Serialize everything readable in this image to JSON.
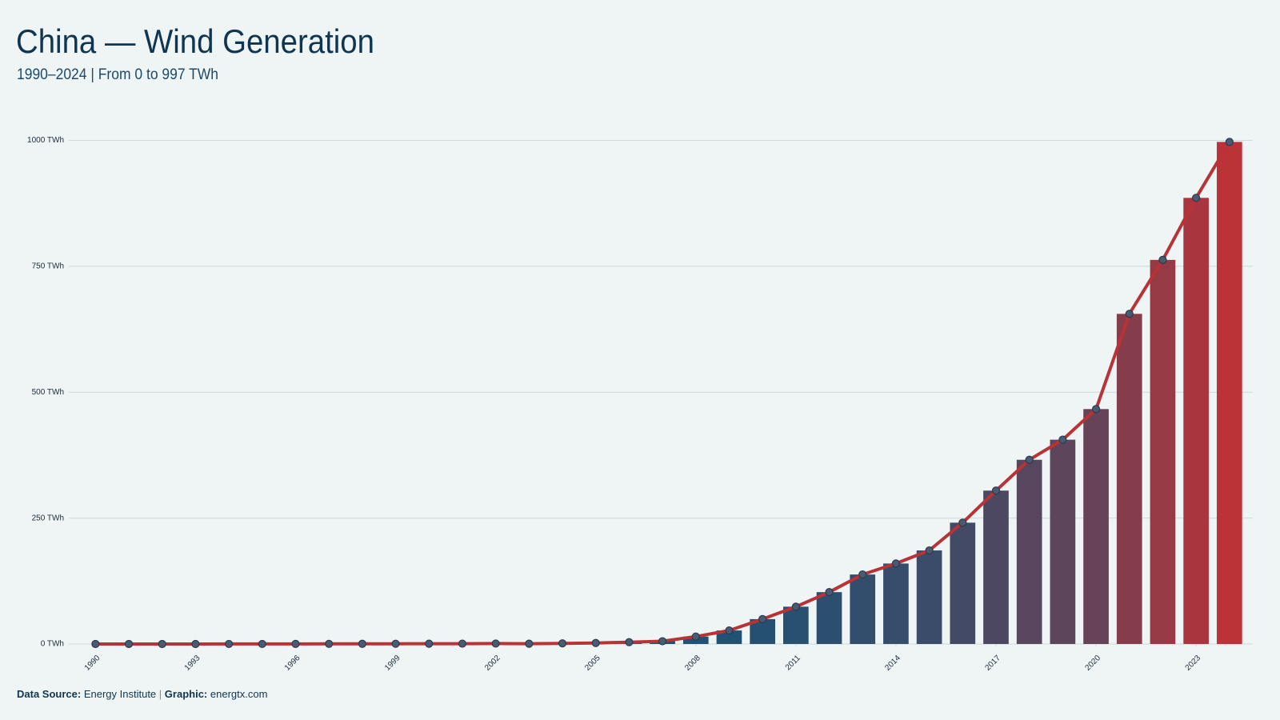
{
  "chart_data": {
    "type": "bar",
    "title": "China — Wind Generation",
    "subtitle": "1990–2024 | From 0 to 997 TWh",
    "source": {
      "source_label": "Data Source:",
      "source_text": "Energy Institute",
      "separator": "|",
      "graphic_label": "Graphic:",
      "graphic_text": "energtx.com"
    },
    "x": [
      1990,
      1991,
      1992,
      1993,
      1994,
      1995,
      1996,
      1997,
      1998,
      1999,
      2000,
      2001,
      2002,
      2003,
      2004,
      2005,
      2006,
      2007,
      2008,
      2009,
      2010,
      2011,
      2012,
      2013,
      2014,
      2015,
      2016,
      2017,
      2018,
      2019,
      2020,
      2021,
      2022,
      2023,
      2024
    ],
    "values": [
      0,
      0,
      0,
      0,
      0.1,
      0.1,
      0.2,
      0.3,
      0.4,
      0.5,
      0.6,
      0.7,
      0.9,
      0.6,
      1.3,
      2.0,
      3.7,
      5.5,
      14.8,
      26.9,
      49.4,
      74.1,
      103,
      138,
      159.8,
      185.8,
      240.9,
      304.6,
      365.8,
      405.7,
      466.5,
      655.6,
      762.7,
      885.9,
      997
    ],
    "colormap": [
      "#1d5275",
      "#bb3237"
    ],
    "line_color": "#b83236",
    "marker_color": "#4a5a70",
    "xlim": [
      1989.2,
      2024.7
    ],
    "xticks": [
      1990,
      1993,
      1996,
      1999,
      2002,
      2005,
      2008,
      2011,
      2014,
      2017,
      2020,
      2023
    ],
    "ylim": [
      0,
      1000
    ],
    "yticks": [
      {
        "value": 0,
        "label": "0 TWh"
      },
      {
        "value": 250,
        "label": "250 TWh"
      },
      {
        "value": 500,
        "label": "500 TWh"
      },
      {
        "value": 750,
        "label": "750 TWh"
      },
      {
        "value": 1000,
        "label": "1000 TWh"
      }
    ],
    "grid": true
  }
}
